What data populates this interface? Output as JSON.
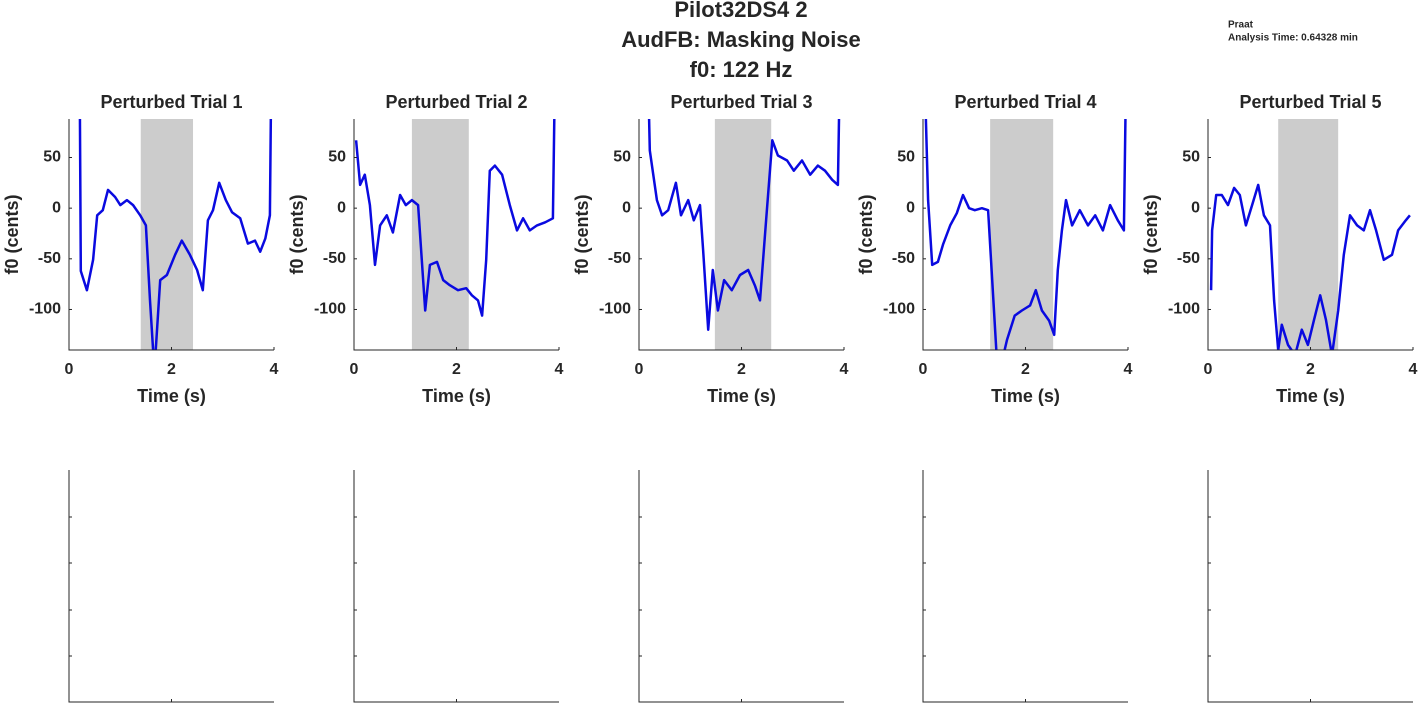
{
  "suptitle": [
    "Pilot32DS4 2",
    "AudFB: Masking Noise",
    "f0: 122 Hz"
  ],
  "annotation": [
    "Praat",
    "Analysis Time: 0.64328 min"
  ],
  "chart_data": [
    {
      "type": "line",
      "title": "Perturbed Trial 1",
      "xlabel": "Time (s)",
      "ylabel": "f0 (cents)",
      "x": [
        0.2,
        0.23,
        0.35,
        0.47,
        0.55,
        0.66,
        0.76,
        0.9,
        1.0,
        1.13,
        1.25,
        1.39,
        1.5,
        1.58,
        1.64,
        1.68,
        1.78,
        1.91,
        2.07,
        2.2,
        2.36,
        2.5,
        2.61,
        2.71,
        2.81,
        2.93,
        3.06,
        3.18,
        3.34,
        3.49,
        3.63,
        3.73,
        3.83,
        3.92,
        3.96
      ],
      "series": [
        {
          "color": "#0a0ae0",
          "values": [
            200,
            -62,
            -81,
            -51,
            -7,
            -2,
            18,
            11,
            3,
            8,
            3,
            -7,
            -17,
            -91,
            -140,
            -150,
            -71,
            -66,
            -46,
            -32,
            -46,
            -61,
            -81,
            -12,
            -2,
            25,
            8,
            -4,
            -10,
            -35,
            -32,
            -43,
            -30,
            -7,
            200
          ]
        }
      ],
      "shade": [
        1.4,
        2.42
      ],
      "shade_color": "#cccccc",
      "xlim": [
        0,
        4
      ],
      "ylim": [
        -140,
        88
      ],
      "xticks": [
        0,
        2,
        4
      ],
      "yticks": [
        -100,
        -50,
        0,
        50
      ]
    },
    {
      "type": "line",
      "title": "Perturbed Trial 2",
      "xlabel": "Time (s)",
      "ylabel": "f0 (cents)",
      "x": [
        0.04,
        0.12,
        0.21,
        0.31,
        0.41,
        0.51,
        0.64,
        0.76,
        0.9,
        1.01,
        1.13,
        1.25,
        1.31,
        1.39,
        1.48,
        1.62,
        1.74,
        1.87,
        2.03,
        2.19,
        2.3,
        2.42,
        2.5,
        2.58,
        2.65,
        2.75,
        2.89,
        3.04,
        3.18,
        3.3,
        3.43,
        3.57,
        3.73,
        3.88,
        3.94
      ],
      "series": [
        {
          "color": "#0a0ae0",
          "values": [
            67,
            23,
            33,
            3,
            -56,
            -17,
            -7,
            -24,
            13,
            3,
            8,
            3,
            -41,
            -101,
            -56,
            -53,
            -71,
            -76,
            -81,
            -79,
            -86,
            -91,
            -106,
            -51,
            37,
            42,
            33,
            3,
            -22,
            -10,
            -22,
            -17,
            -14,
            -10,
            200
          ]
        }
      ],
      "shade": [
        1.13,
        2.24
      ],
      "shade_color": "#cccccc",
      "xlim": [
        0,
        4
      ],
      "ylim": [
        -140,
        88
      ],
      "xticks": [
        0,
        2,
        4
      ],
      "yticks": [
        -100,
        -50,
        0,
        50
      ]
    },
    {
      "type": "line",
      "title": "Perturbed Trial 3",
      "xlabel": "Time (s)",
      "ylabel": "f0 (cents)",
      "x": [
        0.17,
        0.21,
        0.35,
        0.45,
        0.57,
        0.72,
        0.82,
        0.96,
        1.07,
        1.19,
        1.25,
        1.35,
        1.44,
        1.54,
        1.66,
        1.81,
        1.97,
        2.13,
        2.26,
        2.36,
        2.48,
        2.6,
        2.71,
        2.89,
        3.02,
        3.18,
        3.34,
        3.49,
        3.63,
        3.77,
        3.88,
        3.94
      ],
      "series": [
        {
          "color": "#0a0ae0",
          "values": [
            150,
            57,
            8,
            -7,
            -2,
            25,
            -7,
            8,
            -12,
            3,
            -41,
            -120,
            -61,
            -101,
            -71,
            -81,
            -66,
            -61,
            -76,
            -91,
            -12,
            67,
            52,
            47,
            37,
            47,
            33,
            42,
            37,
            28,
            23,
            200
          ]
        }
      ],
      "shade": [
        1.48,
        2.58
      ],
      "shade_color": "#cccccc",
      "xlim": [
        0,
        4
      ],
      "ylim": [
        -140,
        88
      ],
      "xticks": [
        0,
        2,
        4
      ],
      "yticks": [
        -100,
        -50,
        0,
        50
      ]
    },
    {
      "type": "line",
      "title": "Perturbed Trial 4",
      "xlabel": "Time (s)",
      "ylabel": "f0 (cents)",
      "x": [
        0.04,
        0.1,
        0.18,
        0.29,
        0.39,
        0.53,
        0.66,
        0.78,
        0.9,
        1.01,
        1.15,
        1.27,
        1.35,
        1.43,
        1.5,
        1.64,
        1.79,
        1.93,
        2.09,
        2.2,
        2.32,
        2.46,
        2.56,
        2.63,
        2.71,
        2.79,
        2.91,
        3.06,
        3.22,
        3.36,
        3.51,
        3.65,
        3.8,
        3.92,
        3.98
      ],
      "series": [
        {
          "color": "#0a0ae0",
          "values": [
            120,
            8,
            -56,
            -53,
            -36,
            -17,
            -5,
            13,
            0,
            -2,
            0,
            -2,
            -71,
            -140,
            -160,
            -130,
            -106,
            -101,
            -96,
            -81,
            -101,
            -111,
            -125,
            -61,
            -22,
            8,
            -17,
            -2,
            -17,
            -7,
            -22,
            3,
            -12,
            -22,
            200
          ]
        }
      ],
      "shade": [
        1.31,
        2.54
      ],
      "shade_color": "#cccccc",
      "xlim": [
        0,
        4
      ],
      "ylim": [
        -140,
        88
      ],
      "xticks": [
        0,
        2,
        4
      ],
      "yticks": [
        -100,
        -50,
        0,
        50
      ]
    },
    {
      "type": "line",
      "title": "Perturbed Trial 5",
      "xlabel": "Time (s)",
      "ylabel": "f0 (cents)",
      "x": [
        0.06,
        0.08,
        0.16,
        0.27,
        0.39,
        0.51,
        0.62,
        0.74,
        0.86,
        0.98,
        1.09,
        1.21,
        1.29,
        1.37,
        1.44,
        1.56,
        1.7,
        1.83,
        1.95,
        2.07,
        2.19,
        2.3,
        2.42,
        2.54,
        2.65,
        2.77,
        2.91,
        3.04,
        3.16,
        3.28,
        3.43,
        3.59,
        3.71,
        3.86,
        3.94
      ],
      "series": [
        {
          "color": "#0a0ae0",
          "values": [
            -81,
            -22,
            13,
            13,
            3,
            20,
            13,
            -17,
            3,
            23,
            -7,
            -17,
            -91,
            -140,
            -115,
            -135,
            -145,
            -120,
            -135,
            -110,
            -86,
            -110,
            -145,
            -101,
            -46,
            -7,
            -17,
            -22,
            -2,
            -22,
            -51,
            -46,
            -22,
            -12,
            -7
          ]
        }
      ],
      "shade": [
        1.37,
        2.54
      ],
      "shade_color": "#cccccc",
      "xlim": [
        0,
        4
      ],
      "ylim": [
        -140,
        88
      ],
      "xticks": [
        0,
        2,
        4
      ],
      "yticks": [
        -100,
        -50,
        0,
        50
      ]
    }
  ]
}
